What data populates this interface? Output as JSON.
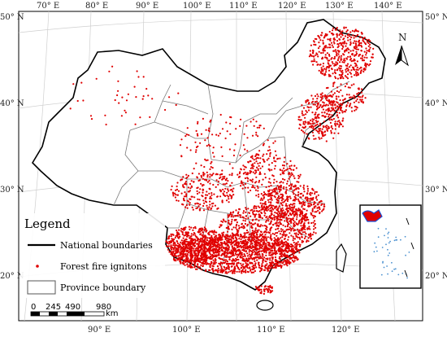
{
  "map": {
    "top_lon_labels": [
      "70° E",
      "80° E",
      "90° E",
      "100° E",
      "110° E",
      "120° E",
      "130° E",
      "140° E"
    ],
    "bottom_lon_labels": [
      "90° E",
      "100° E",
      "110° E",
      "120° E"
    ],
    "left_lat_labels": [
      "50° N",
      "40° N",
      "30° N",
      "20° N"
    ],
    "right_lat_labels": [
      "50° N",
      "40° N",
      "30° N",
      "20° N"
    ],
    "north_arrow": "N",
    "colors": {
      "ignition": "#e00000",
      "boundary": "#000000",
      "province": "#7a7a7a",
      "graticule": "#cfcfcf",
      "sea_dots": "#4a90d0"
    }
  },
  "legend": {
    "title": "Legend",
    "items": [
      {
        "label": "National boundaries",
        "symbol": "thick-line"
      },
      {
        "label": "Forest fire ignitons",
        "symbol": "red-dot"
      },
      {
        "label": "Province boundary",
        "symbol": "box"
      }
    ]
  },
  "scale_bar": {
    "ticks": [
      "0",
      "245",
      "490",
      "980"
    ],
    "unit": "km"
  }
}
